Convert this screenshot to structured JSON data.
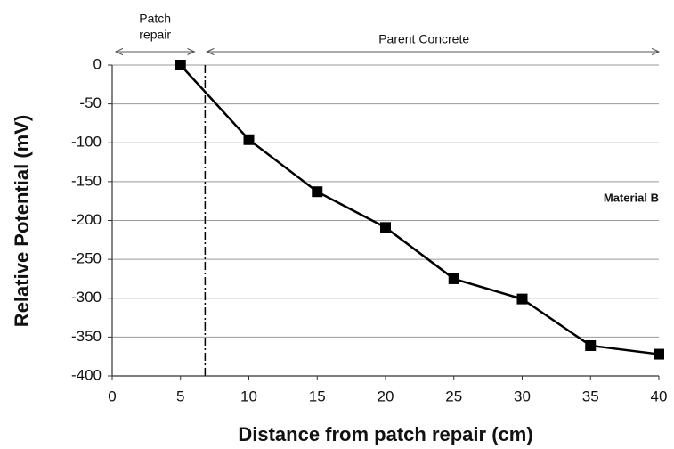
{
  "chart_data": {
    "type": "line",
    "x_label": "Distance from patch repair (cm)",
    "y_label": "Relative Potential (mV)",
    "x": [
      5,
      10,
      15,
      20,
      25,
      30,
      35,
      40
    ],
    "series": [
      {
        "color": "#000000",
        "values": [
          0,
          -96,
          -163,
          -209,
          -275,
          -301,
          -361,
          -372
        ]
      }
    ],
    "xlim": [
      0,
      40
    ],
    "xticks": [
      0,
      5,
      10,
      15,
      20,
      25,
      30,
      35,
      40
    ],
    "ylim": [
      -400,
      0
    ],
    "yticks": [
      0,
      -50,
      -100,
      -150,
      -200,
      -250,
      -300,
      -350,
      -400
    ],
    "grid": true,
    "reference_line": {
      "x": 6.8
    },
    "annotations": {
      "patch_repair": [
        "Patch",
        "repair"
      ],
      "parent_concrete": "Parent Concrete",
      "material": "Material B"
    }
  }
}
